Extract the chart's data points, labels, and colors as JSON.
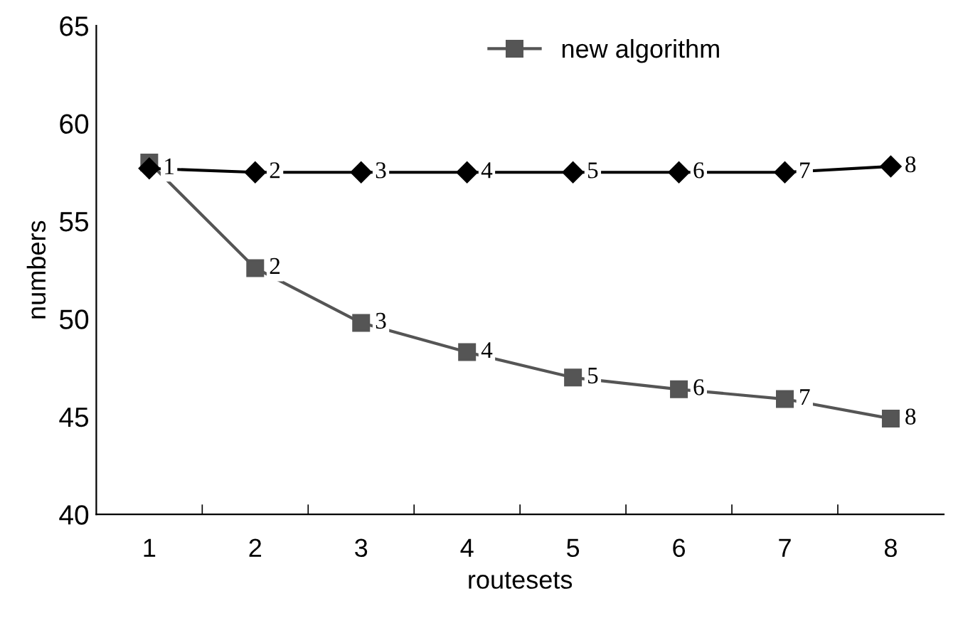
{
  "chart_data": {
    "type": "line",
    "xlabel": "routesets",
    "ylabel": "numbers",
    "categories": [
      "1",
      "2",
      "3",
      "4",
      "5",
      "6",
      "7",
      "8"
    ],
    "series": [
      {
        "color": "#000000",
        "marker": "diamond",
        "values": [
          57.7,
          57.5,
          57.5,
          57.5,
          57.5,
          57.5,
          57.5,
          57.8
        ]
      },
      {
        "name": "new algorithm",
        "color": "#555555",
        "marker": "square",
        "values": [
          58.0,
          52.6,
          49.8,
          48.3,
          47.0,
          46.4,
          45.9,
          44.9
        ]
      }
    ],
    "ylim": [
      40,
      65
    ],
    "yticks": [
      40,
      45,
      50,
      55,
      60,
      65
    ],
    "grid": false,
    "legend": "top",
    "annotations": [
      {
        "text": "1",
        "x": "1",
        "y": 57.7
      },
      {
        "text": "2",
        "x": "2",
        "y": 57.5
      },
      {
        "text": "3",
        "x": "3",
        "y": 57.5
      },
      {
        "text": "4",
        "x": "4",
        "y": 57.5
      },
      {
        "text": "5",
        "x": "5",
        "y": 57.5
      },
      {
        "text": "6",
        "x": "6",
        "y": 57.5
      },
      {
        "text": "7",
        "x": "7",
        "y": 57.5
      },
      {
        "text": "8",
        "x": "8",
        "y": 57.8
      },
      {
        "text": "2",
        "x": "2",
        "y": 52.6
      },
      {
        "text": "3",
        "x": "3",
        "y": 49.8
      },
      {
        "text": "4",
        "x": "4",
        "y": 48.3
      },
      {
        "text": "5",
        "x": "5",
        "y": 47.0
      },
      {
        "text": "6",
        "x": "6",
        "y": 46.4
      },
      {
        "text": "7",
        "x": "7",
        "y": 45.9
      },
      {
        "text": "8",
        "x": "8",
        "y": 44.9
      }
    ]
  }
}
